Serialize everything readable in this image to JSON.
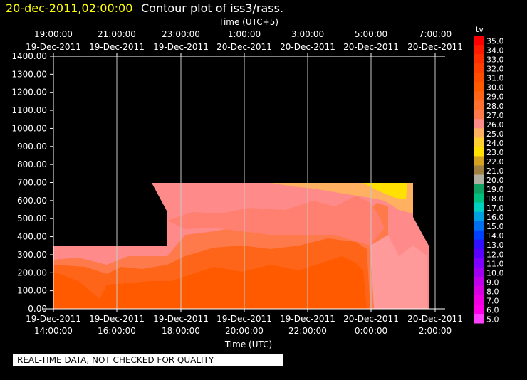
{
  "header": {
    "timestamp": "20-dec-2011,02:00:00",
    "title": "Contour plot of iss3/rass.",
    "timestamp_color": "#ffff00",
    "title_color": "#ffffff"
  },
  "top_axis": {
    "label": "Time (UTC+5)",
    "ticks": [
      {
        "time": "19:00:00",
        "date": "19-Dec-2011"
      },
      {
        "time": "21:00:00",
        "date": "19-Dec-2011"
      },
      {
        "time": "23:00:00",
        "date": "19-Dec-2011"
      },
      {
        "time": "1:00:00",
        "date": "20-Dec-2011"
      },
      {
        "time": "3:00:00",
        "date": "20-Dec-2011"
      },
      {
        "time": "5:00:00",
        "date": "20-Dec-2011"
      },
      {
        "time": "7:00:00",
        "date": "20-Dec-2011"
      }
    ]
  },
  "bottom_axis": {
    "label": "Time (UTC)",
    "ticks": [
      {
        "date": "19-Dec-2011",
        "time": "14:00:00"
      },
      {
        "date": "19-Dec-2011",
        "time": "16:00:00"
      },
      {
        "date": "19-Dec-2011",
        "time": "18:00:00"
      },
      {
        "date": "19-Dec-2011",
        "time": "20:00:00"
      },
      {
        "date": "19-Dec-2011",
        "time": "22:00:00"
      },
      {
        "date": "20-Dec-2011",
        "time": "0:00:00"
      },
      {
        "date": "20-Dec-2011",
        "time": "2:00:00"
      }
    ]
  },
  "left_axis": {
    "ticks": [
      "1400.00",
      "1300.00",
      "1200.00",
      "1100.00",
      "1000.00",
      "900.00",
      "800.00",
      "700.00",
      "600.00",
      "500.00",
      "400.00",
      "300.00",
      "200.00",
      "100.00",
      "0.00"
    ]
  },
  "colorbar": {
    "title": "tv",
    "labels": [
      "35.0",
      "34.0",
      "33.0",
      "32.0",
      "31.0",
      "30.0",
      "29.0",
      "28.0",
      "27.0",
      "26.0",
      "25.0",
      "24.0",
      "23.0",
      "22.0",
      "21.0",
      "20.0",
      "19.0",
      "18.0",
      "17.0",
      "16.0",
      "15.0",
      "14.0",
      "13.0",
      "12.0",
      "11.0",
      "10.0",
      "9.0",
      "8.0",
      "7.0",
      "6.0",
      "5.0"
    ],
    "colors": [
      "#ff0000",
      "#ff1a00",
      "#ff2e00",
      "#ff3f00",
      "#ff4d00",
      "#ff5a00",
      "#ff6518",
      "#ff6f30",
      "#ff7a4a",
      "#ff8a8a",
      "#ffb060",
      "#ffd030",
      "#ffe000",
      "#d4a020",
      "#a08040",
      "#b0b0a0",
      "#10a060",
      "#00c080",
      "#00d0c0",
      "#00a0e0",
      "#0070f0",
      "#0040ff",
      "#3010ff",
      "#5a00ff",
      "#8000ff",
      "#a000f0",
      "#c000e8",
      "#d800e0",
      "#ee00e0",
      "#ff00e8",
      "#ff40ff"
    ]
  },
  "footer": {
    "note": "REAL-TIME DATA, NOT CHECKED FOR QUALITY"
  },
  "chart_data": {
    "type": "heatmap",
    "title": "Contour plot of iss3/rass.",
    "xlabel": "Time (UTC)",
    "x2label": "Time (UTC+5)",
    "ylabel": "",
    "ylim": [
      0,
      1400
    ],
    "xlim": [
      "2011-12-19 13:00",
      "2011-12-20 02:00"
    ],
    "colorbar_label": "tv",
    "colorbar_range": [
      5.0,
      35.0
    ],
    "grid": true,
    "data_extent": {
      "segment_1": {
        "x_from": "2011-12-19 13:00",
        "x_to": "2011-12-19 17:45",
        "height_top": 350
      },
      "segment_2": {
        "x_from": "2011-12-19 17:15",
        "x_to": "2011-12-20 01:50",
        "height_top": 700
      }
    },
    "layers_tv": [
      {
        "height": "0-150",
        "tv": 30
      },
      {
        "height": "150-300",
        "tv": 29
      },
      {
        "height": "300-450",
        "tv": 28
      },
      {
        "height": "450-700",
        "tv": 27
      },
      {
        "height": "600-700 (near 0:00-1:30 UTC)",
        "tv": 24
      }
    ]
  }
}
